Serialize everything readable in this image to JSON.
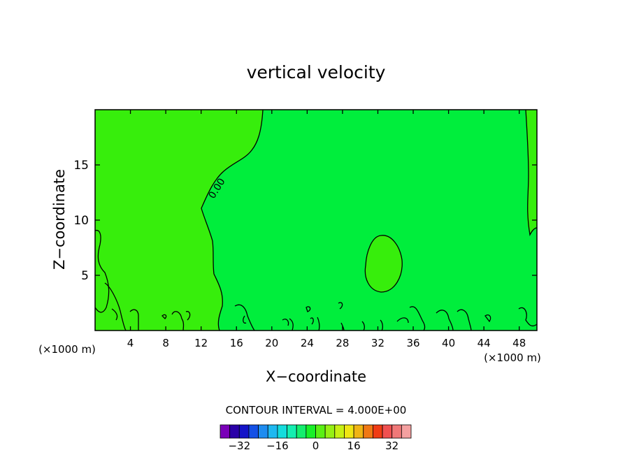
{
  "chart_data": {
    "type": "heatmap",
    "title": "vertical velocity",
    "xlabel": "X−coordinate",
    "ylabel": "Z−coordinate",
    "x_unit_left": "(×1000 m)",
    "x_unit_right": "(×1000 m)",
    "xlim": [
      0,
      50
    ],
    "ylim": [
      0,
      20
    ],
    "x_ticks": [
      4,
      8,
      12,
      16,
      20,
      24,
      28,
      32,
      36,
      40,
      44,
      48
    ],
    "y_ticks": [
      5,
      10,
      15
    ],
    "contour_label": "0.00",
    "contour_interval_text": "CONTOUR INTERVAL = 4.000E+00",
    "colorbar": {
      "colors": [
        "#7a00b8",
        "#2a00a8",
        "#1414c8",
        "#1450e6",
        "#1e8cf0",
        "#1eb8f0",
        "#14dcdc",
        "#14eeb0",
        "#14ee6e",
        "#18f028",
        "#5af014",
        "#96f014",
        "#c8f014",
        "#f0e614",
        "#f0b414",
        "#f07814",
        "#f03c14",
        "#f05050",
        "#f07878",
        "#f4a0a0"
      ],
      "tick_labels": [
        "−32",
        "−16",
        "0",
        "16",
        "32"
      ],
      "tick_values": [
        -32,
        -16,
        0,
        16,
        32
      ],
      "range": [
        -40,
        40
      ]
    },
    "field_colors": {
      "above_zero": "#37ee0c",
      "below_zero": "#00ee3c"
    }
  }
}
